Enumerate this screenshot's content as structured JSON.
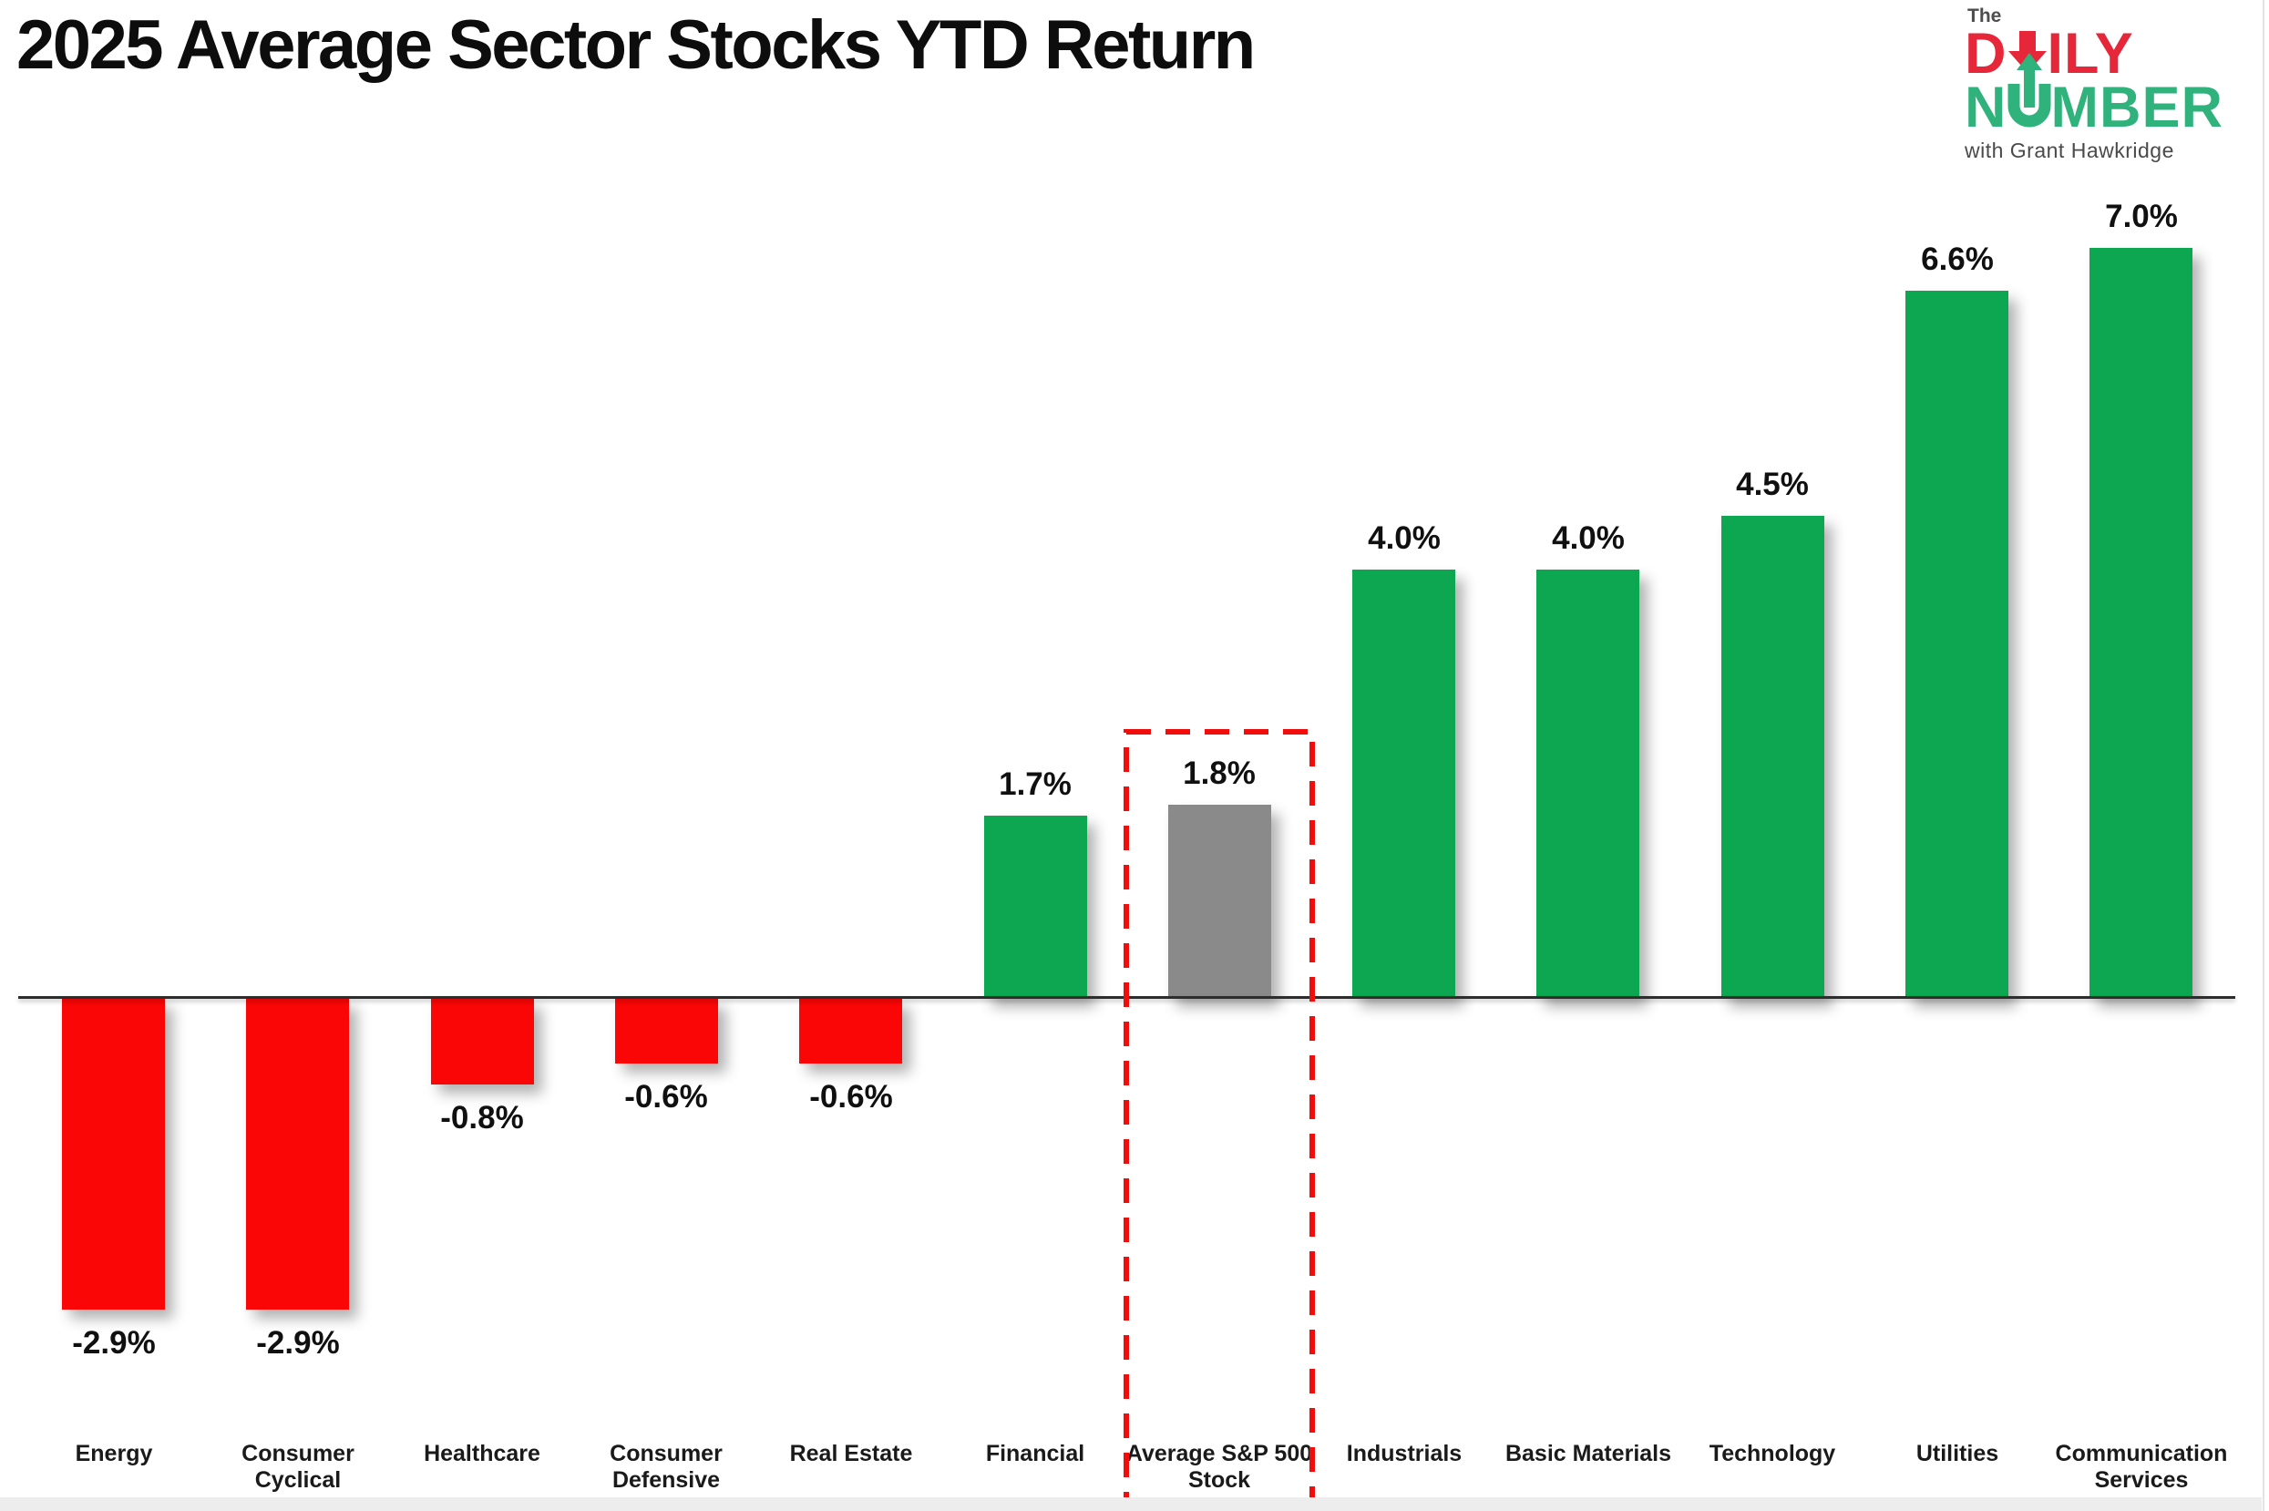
{
  "title": "2025 Average Sector Stocks YTD Return",
  "logo": {
    "the": "The",
    "daily": "DAILY",
    "number": "NUMBER",
    "tagline": "with Grant Hawkridge",
    "daily_color": "#e62639",
    "number_color": "#2fb27c",
    "text_color": "#4d4d4d"
  },
  "chart_data": {
    "type": "bar",
    "title": "2025 Average Sector Stocks YTD Return",
    "xlabel": "",
    "ylabel": "",
    "grid": false,
    "legend": "none",
    "ylim": [
      -3.5,
      8
    ],
    "categories": [
      "Energy",
      "Consumer Cyclical",
      "Healthcare",
      "Consumer Defensive",
      "Real Estate",
      "Financial",
      "Average S&P 500 Stock",
      "Industrials",
      "Basic Materials",
      "Technology",
      "Utilities",
      "Communication Services"
    ],
    "categories_lines": [
      [
        "Energy"
      ],
      [
        "Consumer",
        "Cyclical"
      ],
      [
        "Healthcare"
      ],
      [
        "Consumer",
        "Defensive"
      ],
      [
        "Real Estate"
      ],
      [
        "Financial"
      ],
      [
        "Average S&P 500",
        "Stock"
      ],
      [
        "Industrials"
      ],
      [
        "Basic Materials"
      ],
      [
        "Technology"
      ],
      [
        "Utilities"
      ],
      [
        "Communication",
        "Services"
      ]
    ],
    "values": [
      -2.9,
      -2.9,
      -0.8,
      -0.6,
      -0.6,
      1.7,
      1.8,
      4.0,
      4.0,
      4.5,
      6.6,
      7.0
    ],
    "value_labels": [
      "-2.9%",
      "-2.9%",
      "-0.8%",
      "-0.6%",
      "-0.6%",
      "1.7%",
      "1.8%",
      "4.0%",
      "4.0%",
      "4.5%",
      "6.6%",
      "7.0%"
    ],
    "highlight_index": 6,
    "colors": {
      "positive": "#0ca750",
      "negative": "#fb0606",
      "highlight_bar": "#8a8a8a",
      "highlight_box": "#f20d0d",
      "axis_line": "#2d2d2d"
    }
  }
}
